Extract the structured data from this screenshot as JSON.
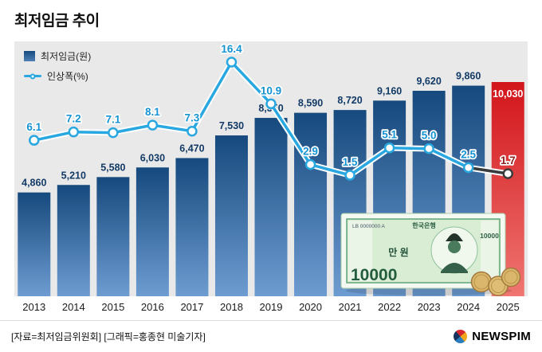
{
  "title": "최저임금 추이",
  "legend": {
    "bar_label": "최저임금(원)",
    "line_label": "인상폭(%)"
  },
  "chart_data": {
    "type": "bar+line",
    "title": "최저임금 추이",
    "categories": [
      "2013",
      "2014",
      "2015",
      "2016",
      "2017",
      "2018",
      "2019",
      "2020",
      "2021",
      "2022",
      "2023",
      "2024",
      "2025"
    ],
    "series": [
      {
        "name": "최저임금(원)",
        "type": "bar",
        "values": [
          4860,
          5210,
          5580,
          6030,
          6470,
          7530,
          8350,
          8590,
          8720,
          9160,
          9620,
          9860,
          10030
        ]
      },
      {
        "name": "인상폭(%)",
        "type": "line",
        "values": [
          6.1,
          7.2,
          7.1,
          8.1,
          7.3,
          16.4,
          10.9,
          2.9,
          1.5,
          5.1,
          5.0,
          2.5,
          1.7
        ]
      }
    ],
    "highlight_index": 12,
    "bar_ylim": [
      0,
      10030
    ],
    "line_ylim": [
      0,
      18
    ],
    "grid": false,
    "legend_position": "top-left",
    "colors": {
      "panel": "#e9e9e9",
      "bar_top": "#16497d",
      "bar_bottom": "#6d9cd1",
      "red_top": "#d2151b",
      "red_bottom": "#ef7672",
      "bar_label": "#123a66",
      "line": "#29a7e0",
      "line_final": "#3b3b3b",
      "pct_label": "#1593d2",
      "pct_label_final": "#8a2420",
      "axis_label": "#1b1b1b"
    }
  },
  "illustration": {
    "bank": "한국은행",
    "denom_label": "만 원",
    "value_big": "10000",
    "value_side": "10000",
    "serial": "LB 0000000 A"
  },
  "footer": {
    "credits": "[자료=최저임금위원회] [그래픽=홍종현 미술기자]",
    "logo_text": "NEWSPIM"
  }
}
